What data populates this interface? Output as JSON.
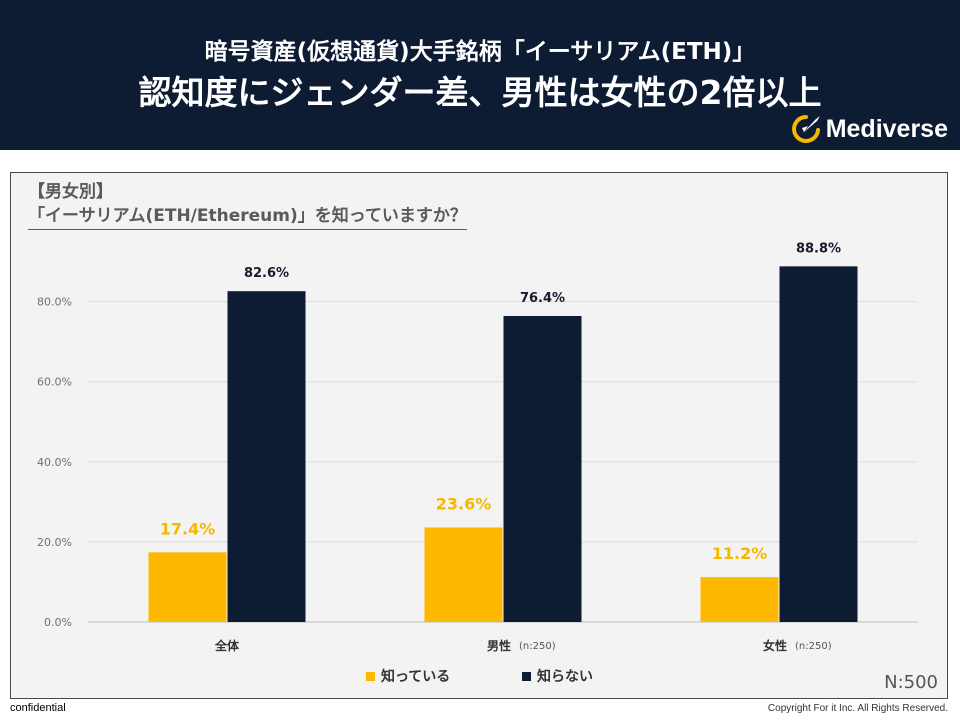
{
  "header": {
    "title_line1": "暗号資産(仮想通貨)大手銘柄「イーサリアム(ETH)」",
    "title_line2": "認知度にジェンダー差、男性は女性の2倍以上",
    "brand": "Mediverse",
    "bg_color": "#0d1b33",
    "logo_color": "#f5b800"
  },
  "chart_title": {
    "line1": "【男女別】",
    "line2": "「イーサリアム(ETH/Ethereum)」を知っていますか？"
  },
  "chart_data": {
    "type": "bar",
    "categories": [
      "全体",
      "男性",
      "女性"
    ],
    "category_notes": [
      "",
      "(n:250)",
      "(n:250)"
    ],
    "series": [
      {
        "name": "知っている",
        "color": "#ffb800",
        "values": [
          17.4,
          23.6,
          11.2
        ],
        "labels": [
          "17.4%",
          "23.6%",
          "11.2%"
        ]
      },
      {
        "name": "知らない",
        "color": "#0d1b33",
        "values": [
          82.6,
          76.4,
          88.8
        ],
        "labels": [
          "82.6%",
          "76.4%",
          "88.8%"
        ]
      }
    ],
    "y_ticks": [
      0,
      20,
      40,
      60,
      80
    ],
    "y_tick_labels": [
      "0.0%",
      "20.0%",
      "40.0%",
      "60.0%",
      "80.0%"
    ],
    "ylim": [
      0,
      100
    ],
    "grid": true,
    "legend": "bottom-center"
  },
  "sample_size": "N:500",
  "footer": {
    "left": "confidential",
    "right": "Copyright For it Inc. All Rights Reserved."
  }
}
